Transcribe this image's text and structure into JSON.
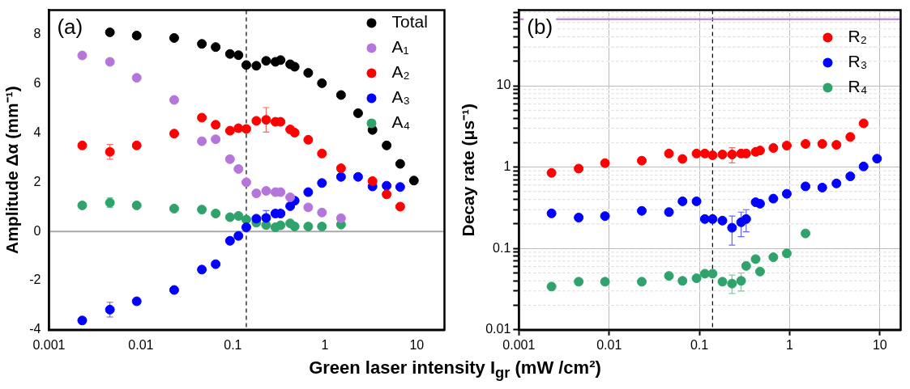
{
  "chart_data": [
    {
      "type": "scatter",
      "xlabel": "Green laser intensity I$_{gr}$ (mW /cm²)",
      "ylabel": "Amplitude Δα (mm⁻¹)",
      "annotations": [
        "(a)"
      ],
      "log": "x",
      "xlim": [
        0.001,
        20
      ],
      "xticks": [
        0.001,
        0.01,
        0.1,
        1,
        10
      ],
      "ylim": [
        -4,
        9
      ],
      "yticks": [
        -4,
        -2,
        0,
        2,
        4,
        6,
        8
      ],
      "grid": false,
      "legend": "top right",
      "marker": "circle",
      "ref_lines": [
        {
          "axis": "x",
          "value": 0.14,
          "color": "#000000",
          "line_style": "dashed"
        },
        {
          "axis": "y",
          "value": 0,
          "color": "#aaaaaa",
          "line_style": "solid"
        }
      ],
      "series": [
        {
          "name": "Total",
          "color": "#000000",
          "x": [
            0.0046,
            0.009,
            0.023,
            0.046,
            0.065,
            0.093,
            0.115,
            0.14,
            0.18,
            0.23,
            0.29,
            0.33,
            0.42,
            0.47,
            0.66,
            0.93,
            1.5,
            2.3,
            3.3,
            4.7,
            6.6,
            9.3
          ],
          "values": [
            8.1,
            7.97,
            7.87,
            7.63,
            7.5,
            7.22,
            7.17,
            6.77,
            6.74,
            6.94,
            6.9,
            6.97,
            6.8,
            6.7,
            6.45,
            6.03,
            5.55,
            4.81,
            4.13,
            3.5,
            2.75,
            2.07
          ]
        },
        {
          "name": "A₁",
          "color": "#b576dc",
          "x": [
            0.0023,
            0.0046,
            0.009,
            0.023,
            0.046,
            0.065,
            0.093,
            0.115,
            0.14,
            0.18,
            0.23,
            0.29,
            0.33,
            0.42,
            0.66,
            0.93,
            1.5
          ],
          "values": [
            7.16,
            6.9,
            6.25,
            5.35,
            3.67,
            3.75,
            2.94,
            2.54,
            2.0,
            1.55,
            1.65,
            1.6,
            1.6,
            1.39,
            0.98,
            0.77,
            0.54
          ]
        },
        {
          "name": "A₂",
          "color": "#ff0000",
          "x": [
            0.0023,
            0.0046,
            0.009,
            0.023,
            0.046,
            0.065,
            0.093,
            0.115,
            0.14,
            0.18,
            0.23,
            0.29,
            0.33,
            0.42,
            0.47,
            0.66,
            0.93,
            1.5,
            3.3,
            4.7,
            6.6
          ],
          "values": [
            3.5,
            3.24,
            3.5,
            3.98,
            4.63,
            4.34,
            4.1,
            4.2,
            4.17,
            4.5,
            4.54,
            4.46,
            4.46,
            4.15,
            4.02,
            3.73,
            3.17,
            2.57,
            2.05,
            1.51,
            1.01
          ],
          "errors": [
            null,
            0.3,
            null,
            null,
            null,
            null,
            null,
            null,
            null,
            null,
            0.5,
            null,
            null,
            null,
            null,
            null,
            null,
            null,
            null,
            null,
            null
          ]
        },
        {
          "name": "A₃",
          "color": "#0000ff",
          "x": [
            0.0023,
            0.0046,
            0.009,
            0.023,
            0.046,
            0.065,
            0.093,
            0.115,
            0.14,
            0.18,
            0.23,
            0.29,
            0.33,
            0.42,
            0.47,
            0.66,
            0.93,
            1.5,
            2.3,
            3.3,
            4.7,
            6.6
          ],
          "values": [
            -3.62,
            -3.18,
            -2.84,
            -2.38,
            -1.55,
            -1.33,
            -0.38,
            -0.18,
            0.17,
            0.52,
            0.55,
            0.73,
            0.73,
            1.03,
            1.25,
            1.6,
            1.97,
            2.22,
            2.22,
            1.83,
            1.86,
            1.81
          ],
          "errors": [
            null,
            0.3,
            null,
            null,
            null,
            null,
            null,
            null,
            null,
            null,
            0.3,
            null,
            null,
            null,
            null,
            null,
            null,
            null,
            null,
            null,
            null,
            null
          ]
        },
        {
          "name": "A₄",
          "color": "#2fa36b",
          "x": [
            0.0023,
            0.0046,
            0.009,
            0.023,
            0.046,
            0.065,
            0.093,
            0.115,
            0.14,
            0.18,
            0.23,
            0.29,
            0.33,
            0.42,
            0.47,
            0.66,
            0.93,
            1.5
          ],
          "values": [
            1.06,
            1.17,
            1.06,
            0.93,
            0.89,
            0.73,
            0.58,
            0.63,
            0.48,
            0.36,
            0.26,
            0.17,
            0.25,
            0.33,
            0.2,
            0.2,
            0.2,
            0.28
          ],
          "errors": [
            null,
            0.2,
            null,
            null,
            null,
            null,
            null,
            null,
            null,
            null,
            null,
            null,
            null,
            null,
            null,
            null,
            null,
            null
          ]
        }
      ]
    },
    {
      "type": "scatter",
      "ylabel": "Decay rate (μs⁻¹)",
      "annotations": [
        "(b)"
      ],
      "log": "xy",
      "xlim": [
        0.001,
        17
      ],
      "xticks": [
        0.001,
        0.01,
        0.1,
        1,
        10
      ],
      "ylim": [
        0.01,
        85
      ],
      "yticks": [
        0.01,
        {
          "value": 0.02,
          "label": null
        },
        {
          "value": 0.03,
          "label": null
        },
        {
          "value": 0.04,
          "label": null
        },
        {
          "value": 0.05,
          "label": null
        },
        {
          "value": 0.06,
          "label": null
        },
        {
          "value": 0.07,
          "label": null
        },
        {
          "value": 0.08,
          "label": null
        },
        {
          "value": 0.09,
          "label": null
        },
        0.1,
        {
          "value": 0.2,
          "label": null
        },
        {
          "value": 0.3,
          "label": null
        },
        {
          "value": 0.4,
          "label": null
        },
        {
          "value": 0.5,
          "label": null
        },
        {
          "value": 0.6,
          "label": null
        },
        {
          "value": 0.7,
          "label": null
        },
        {
          "value": 0.8,
          "label": null
        },
        {
          "value": 0.9,
          "label": null
        },
        1,
        {
          "value": 2,
          "label": null
        },
        {
          "value": 3,
          "label": null
        },
        {
          "value": 4,
          "label": null
        },
        {
          "value": 5,
          "label": null
        },
        {
          "value": 6,
          "label": null
        },
        {
          "value": 7,
          "label": null
        },
        {
          "value": 8,
          "label": null
        },
        {
          "value": 9,
          "label": null
        },
        10,
        {
          "value": 20,
          "label": null
        },
        {
          "value": 30,
          "label": null
        },
        {
          "value": 40,
          "label": null
        },
        {
          "value": 50,
          "label": null
        },
        {
          "value": 60,
          "label": null
        },
        {
          "value": 70,
          "label": null
        },
        {
          "value": 80,
          "label": null
        }
      ],
      "grid": true,
      "legend": "top right",
      "marker": "circle",
      "ref_lines": [
        {
          "axis": "x",
          "value": 0.14,
          "color": "#000000",
          "line_style": "dashed"
        },
        {
          "axis": "y",
          "value": 66,
          "color": "#b576dc",
          "line_style": "solid"
        }
      ],
      "series": [
        {
          "name": "R₂",
          "color": "#ff0000",
          "x": [
            0.0023,
            0.0046,
            0.009,
            0.023,
            0.046,
            0.065,
            0.093,
            0.115,
            0.14,
            0.18,
            0.23,
            0.29,
            0.33,
            0.42,
            0.47,
            0.66,
            0.93,
            1.5,
            2.3,
            3.3,
            4.7,
            6.6
          ],
          "values": [
            0.85,
            0.96,
            1.12,
            1.2,
            1.47,
            1.26,
            1.47,
            1.47,
            1.4,
            1.43,
            1.43,
            1.47,
            1.47,
            1.54,
            1.6,
            1.72,
            1.84,
            1.93,
            1.93,
            1.88,
            2.35,
            3.45
          ],
          "errors": [
            null,
            null,
            null,
            null,
            null,
            null,
            null,
            null,
            null,
            null,
            0.3,
            null,
            null,
            null,
            null,
            null,
            null,
            null,
            null,
            null,
            null,
            null
          ]
        },
        {
          "name": "R₃",
          "color": "#0000ff",
          "x": [
            0.0023,
            0.0046,
            0.009,
            0.023,
            0.046,
            0.065,
            0.093,
            0.115,
            0.14,
            0.18,
            0.23,
            0.29,
            0.33,
            0.42,
            0.47,
            0.66,
            0.93,
            1.5,
            2.3,
            3.3,
            4.7,
            6.6,
            9.3
          ],
          "values": [
            0.27,
            0.24,
            0.25,
            0.29,
            0.28,
            0.38,
            0.38,
            0.23,
            0.23,
            0.22,
            0.18,
            0.21,
            0.23,
            0.37,
            0.355,
            0.41,
            0.47,
            0.58,
            0.56,
            0.63,
            0.77,
            1.02,
            1.27
          ],
          "errors": [
            null,
            null,
            null,
            null,
            null,
            null,
            null,
            null,
            null,
            null,
            [
              0.11,
              0.25
            ],
            [
              0.14,
              0.28
            ],
            [
              0.16,
              0.3
            ],
            null,
            null,
            null,
            null,
            null,
            null,
            null,
            null,
            null,
            null
          ]
        },
        {
          "name": "R₄",
          "color": "#2fa36b",
          "x": [
            0.0023,
            0.0046,
            0.009,
            0.023,
            0.046,
            0.065,
            0.093,
            0.115,
            0.14,
            0.18,
            0.23,
            0.29,
            0.33,
            0.42,
            0.47,
            0.66,
            0.93,
            1.5
          ],
          "values": [
            0.034,
            0.039,
            0.039,
            0.039,
            0.046,
            0.04,
            0.043,
            0.049,
            0.049,
            0.039,
            0.037,
            0.04,
            0.061,
            0.074,
            0.052,
            0.078,
            0.087,
            0.153
          ],
          "errors": [
            null,
            null,
            null,
            null,
            null,
            null,
            null,
            null,
            null,
            null,
            [
              0.028,
              0.047
            ],
            [
              0.03,
              0.05
            ],
            null,
            null,
            null,
            null,
            null,
            null
          ]
        }
      ]
    }
  ]
}
